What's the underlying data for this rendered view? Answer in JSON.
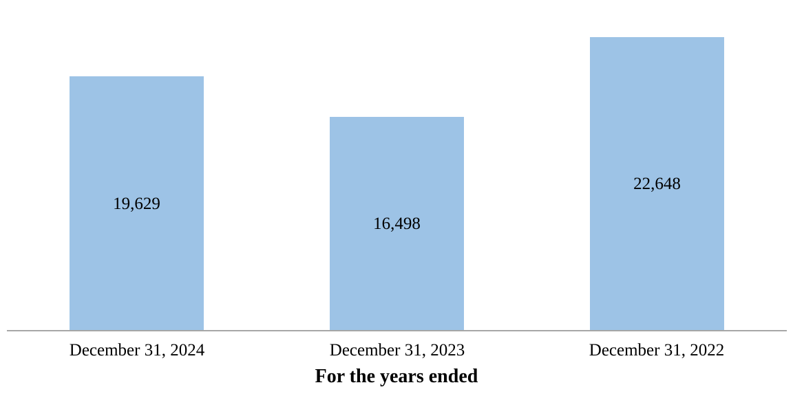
{
  "chart_data": {
    "type": "bar",
    "categories": [
      "December 31, 2024",
      "December 31, 2023",
      "December 31, 2022"
    ],
    "values": [
      19629,
      16498,
      22648
    ],
    "value_labels": [
      "19,629",
      "16,498",
      "22,648"
    ],
    "title": "",
    "xlabel": "For the years ended",
    "ylabel": "",
    "ylim": [
      0,
      22648
    ],
    "grid": false,
    "legend_position": "none",
    "value_label_position": "center",
    "colors": {
      "bar_fill": "#9DC3E6",
      "axis_line": "#A6A6A6",
      "text": "#000000"
    }
  }
}
